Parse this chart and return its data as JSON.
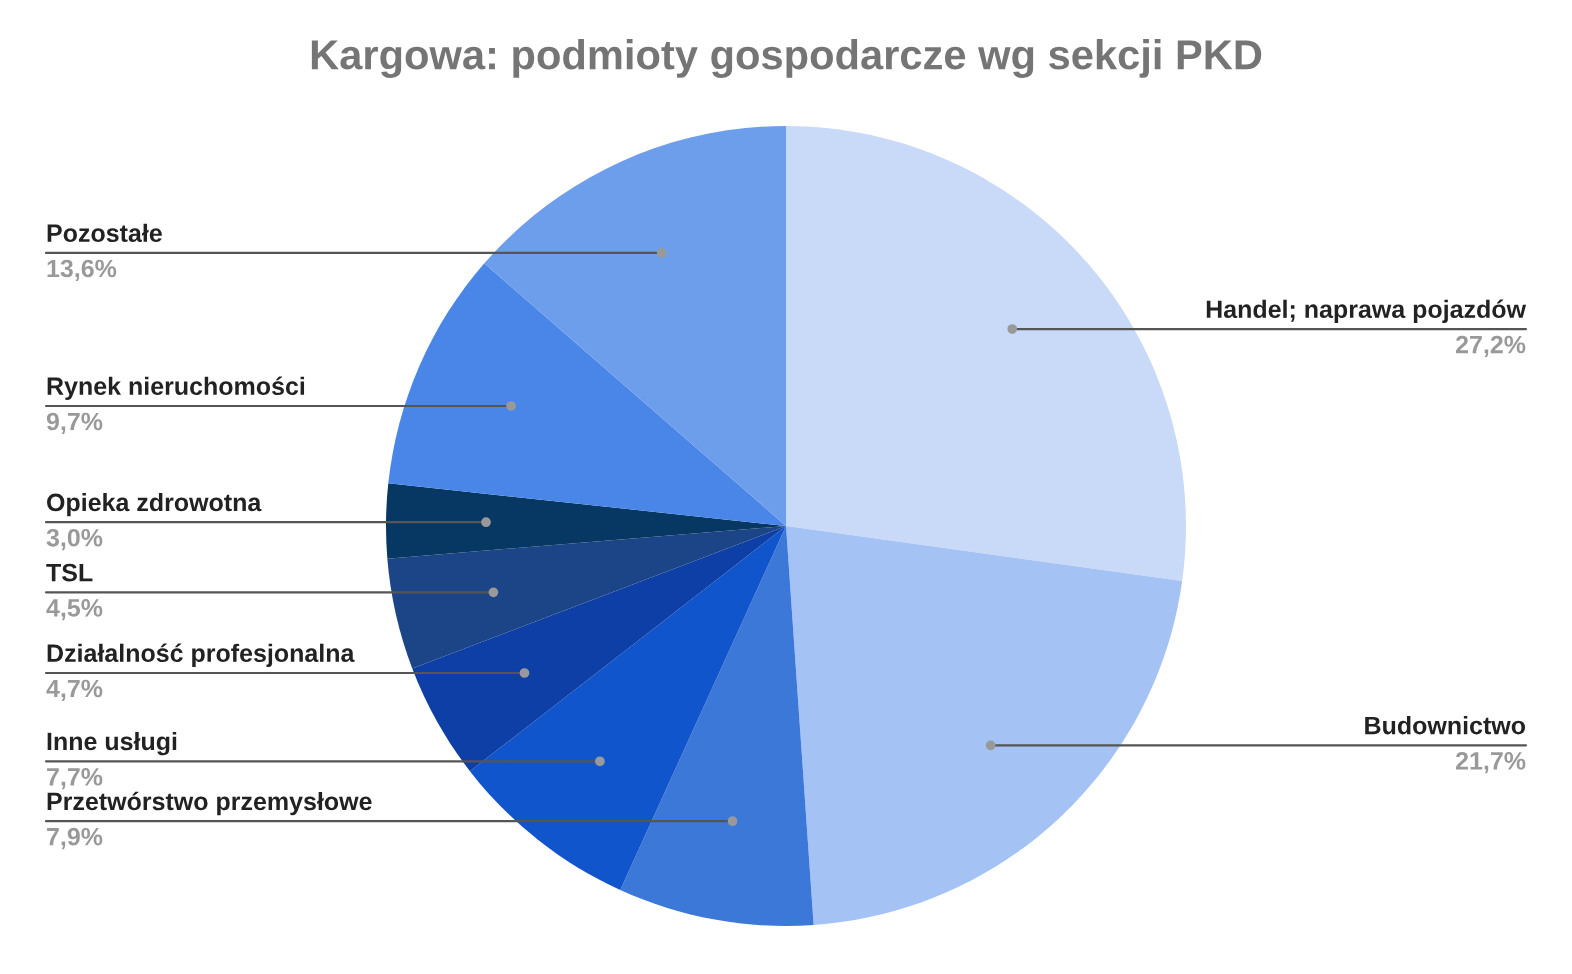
{
  "chart_data": {
    "type": "pie",
    "title": "Kargowa: podmioty gospodarcze wg sekcji PKD",
    "categories": [
      "Handel; naprawa pojazdów",
      "Budownictwo",
      "Przetwórstwo przemysłowe",
      "Inne usługi",
      "Działalność profesjonalna",
      "TSL",
      "Opieka zdrowotna",
      "Rynek nieruchomości",
      "Pozostałe"
    ],
    "values": [
      27.2,
      21.7,
      7.9,
      7.7,
      4.7,
      4.5,
      3.0,
      9.7,
      13.6
    ],
    "value_labels": [
      "27,2%",
      "21,7%",
      "7,9%",
      "7,7%",
      "4,7%",
      "4,5%",
      "3,0%",
      "9,7%",
      "13,6%"
    ],
    "colors": [
      "#c9daf8",
      "#a4c2f4",
      "#3c78d8",
      "#1155cc",
      "#0d3fa6",
      "#1c4587",
      "#073763",
      "#4a86e8",
      "#6d9eeb"
    ]
  }
}
